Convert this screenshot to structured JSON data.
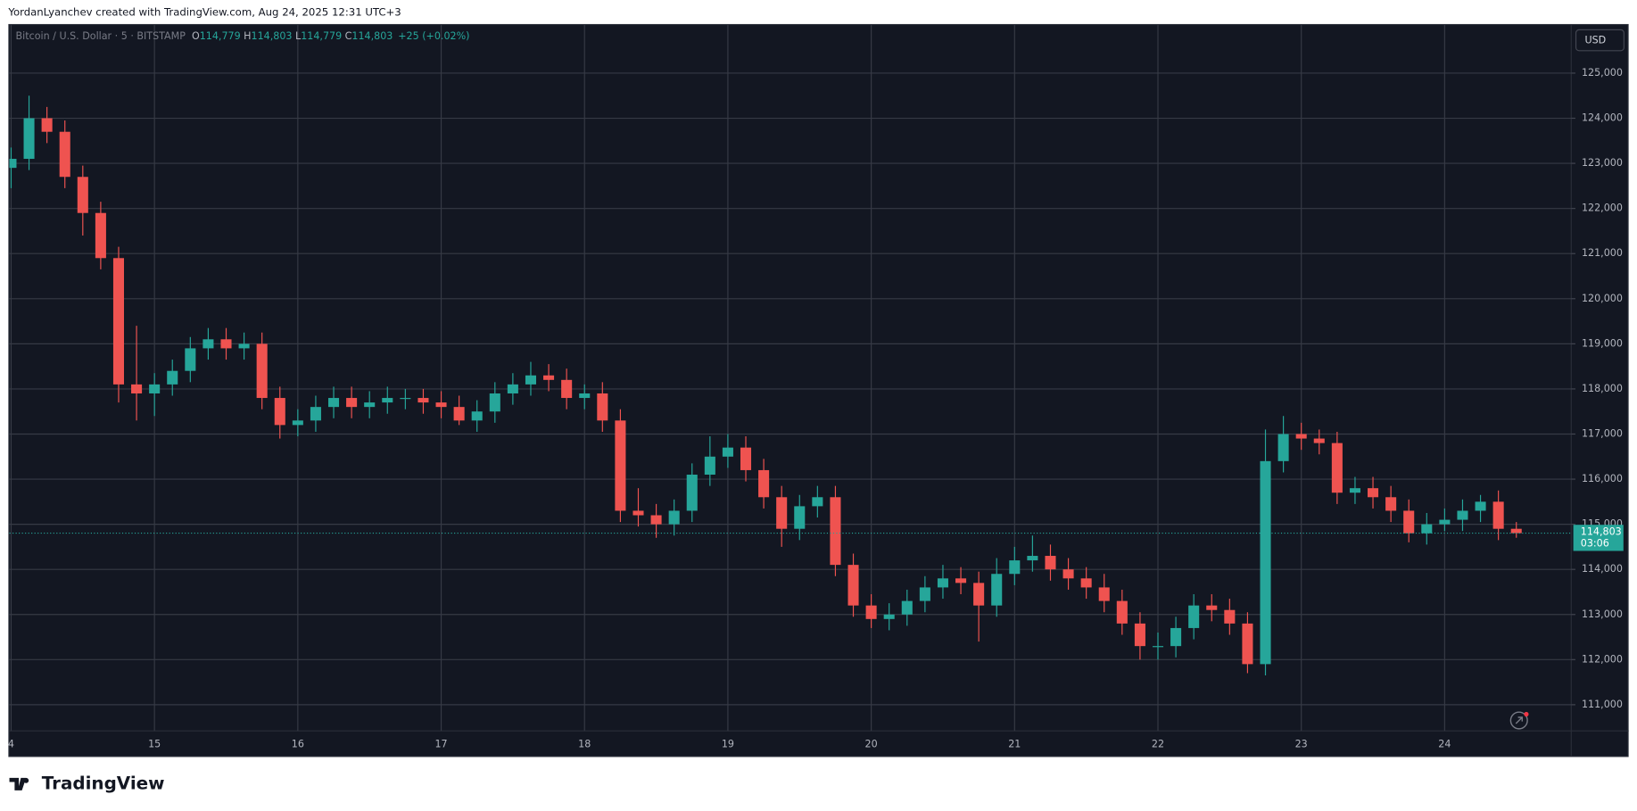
{
  "header": {
    "attribution": "YordanLyanchev created with TradingView.com, Aug 24, 2025 12:31 UTC+3"
  },
  "chart_data": {
    "type": "candlestick",
    "title": "Bitcoin / U.S. Dollar · 5 · BITSTAMP",
    "ohlc_legend": [
      {
        "key": "O",
        "value": "114,779"
      },
      {
        "key": "H",
        "value": "114,803"
      },
      {
        "key": "L",
        "value": "114,779"
      },
      {
        "key": "C",
        "value": "114,803"
      }
    ],
    "change": "+25 (+0.02%)",
    "currency": "USD",
    "up_color": "#26a69a",
    "down_color": "#ef5350",
    "grid": true,
    "x": [
      14,
      14.125,
      14.25,
      14.375,
      14.5,
      14.625,
      14.75,
      14.875,
      15,
      15.125,
      15.25,
      15.375,
      15.5,
      15.625,
      15.75,
      15.875,
      16,
      16.125,
      16.25,
      16.375,
      16.5,
      16.625,
      16.75,
      16.875,
      17,
      17.125,
      17.25,
      17.375,
      17.5,
      17.625,
      17.75,
      17.875,
      18,
      18.125,
      18.25,
      18.375,
      18.5,
      18.625,
      18.75,
      18.875,
      19,
      19.125,
      19.25,
      19.375,
      19.5,
      19.625,
      19.75,
      19.875,
      20,
      20.125,
      20.25,
      20.375,
      20.5,
      20.625,
      20.75,
      20.875,
      21,
      21.125,
      21.25,
      21.375,
      21.5,
      21.625,
      21.75,
      21.875,
      22,
      22.125,
      22.25,
      22.375,
      22.5,
      22.625,
      22.75,
      22.875,
      23,
      23.125,
      23.25,
      23.375,
      23.5,
      23.625,
      23.75,
      23.875,
      24,
      24.125,
      24.25,
      24.375,
      24.5
    ],
    "open": [
      122900,
      123100,
      124000,
      123700,
      122700,
      121900,
      120900,
      118100,
      117900,
      118100,
      118400,
      118900,
      119100,
      118900,
      119000,
      117800,
      117200,
      117300,
      117600,
      117800,
      117600,
      117700,
      117800,
      117800,
      117700,
      117600,
      117300,
      117500,
      117900,
      118100,
      118300,
      118200,
      117800,
      117900,
      117300,
      115300,
      115200,
      115000,
      115300,
      116100,
      116500,
      116700,
      116200,
      115600,
      114900,
      115400,
      115600,
      114100,
      113200,
      112900,
      113000,
      113300,
      113600,
      113800,
      113700,
      113200,
      113900,
      114200,
      114300,
      114000,
      113800,
      113600,
      113300,
      112800,
      112300,
      112300,
      112700,
      113200,
      113100,
      112800,
      111900,
      116400,
      117000,
      116900,
      116800,
      115700,
      115800,
      115600,
      115300,
      114800,
      115000,
      115100,
      115300,
      115500,
      114900
    ],
    "high": [
      123350,
      124500,
      124250,
      123950,
      122950,
      122150,
      121150,
      119400,
      118350,
      118650,
      119150,
      119350,
      119350,
      119250,
      119250,
      118050,
      117550,
      117850,
      118050,
      118050,
      117950,
      118050,
      118000,
      118000,
      117950,
      117850,
      117750,
      118150,
      118350,
      118600,
      118550,
      118450,
      118100,
      118150,
      117550,
      115800,
      115450,
      115550,
      116350,
      116950,
      117000,
      116950,
      116450,
      115850,
      115650,
      115850,
      115850,
      114350,
      113450,
      113250,
      113550,
      113850,
      114100,
      114050,
      113950,
      114250,
      114500,
      114750,
      114550,
      114250,
      114050,
      113900,
      113550,
      113050,
      112600,
      112950,
      113450,
      113450,
      113350,
      113050,
      117100,
      117400,
      117250,
      117100,
      117050,
      116050,
      116050,
      115850,
      115550,
      115250,
      115350,
      115550,
      115650,
      115750,
      115050
    ],
    "low": [
      122450,
      122850,
      123450,
      122450,
      121400,
      120650,
      117700,
      117300,
      117400,
      117850,
      118150,
      118650,
      118650,
      118650,
      117550,
      116900,
      116950,
      117050,
      117350,
      117350,
      117350,
      117450,
      117550,
      117450,
      117350,
      117200,
      117050,
      117250,
      117650,
      117850,
      117950,
      117550,
      117550,
      117050,
      115050,
      114950,
      114700,
      114750,
      115050,
      115850,
      116250,
      115950,
      115350,
      114500,
      114650,
      115150,
      113850,
      112950,
      112700,
      112650,
      112750,
      113050,
      113350,
      113450,
      112400,
      112950,
      113650,
      113950,
      113750,
      113550,
      113350,
      113050,
      112550,
      112000,
      112000,
      112050,
      112450,
      112850,
      112550,
      111700,
      111650,
      116150,
      116650,
      116550,
      115450,
      115450,
      115350,
      115050,
      114600,
      114550,
      114850,
      114850,
      115050,
      114650,
      114700
    ],
    "close": [
      123100,
      124000,
      123700,
      122700,
      121900,
      120900,
      118100,
      117900,
      118100,
      118400,
      118900,
      119100,
      118900,
      119000,
      117800,
      117200,
      117300,
      117600,
      117800,
      117600,
      117700,
      117800,
      117800,
      117700,
      117600,
      117300,
      117500,
      117900,
      118100,
      118300,
      118200,
      117800,
      117900,
      117300,
      115300,
      115200,
      115000,
      115300,
      116100,
      116500,
      116700,
      116200,
      115600,
      114900,
      115400,
      115600,
      114100,
      113200,
      112900,
      113000,
      113300,
      113600,
      113800,
      113700,
      113200,
      113900,
      114200,
      114300,
      114000,
      113800,
      113600,
      113300,
      112800,
      112300,
      112300,
      112700,
      113200,
      113100,
      112800,
      111900,
      116400,
      117000,
      116900,
      116800,
      115700,
      115800,
      115600,
      115300,
      114800,
      115000,
      115100,
      115300,
      115500,
      114900,
      114803
    ],
    "xlim": [
      13.988,
      24.883
    ],
    "xticks": [
      {
        "value": 14,
        "label": "4"
      },
      15,
      16,
      17,
      18,
      19,
      20,
      21,
      22,
      23,
      24
    ],
    "ylim": [
      110420,
      126065
    ],
    "yticks": [
      {
        "value": 125000,
        "label": "125,000"
      },
      {
        "value": 124000,
        "label": "124,000"
      },
      {
        "value": 123000,
        "label": "123,000"
      },
      {
        "value": 122000,
        "label": "122,000"
      },
      {
        "value": 121000,
        "label": "121,000"
      },
      {
        "value": 120000,
        "label": "120,000"
      },
      {
        "value": 119000,
        "label": "119,000"
      },
      {
        "value": 118000,
        "label": "118,000"
      },
      {
        "value": 117000,
        "label": "117,000"
      },
      {
        "value": 116000,
        "label": "116,000"
      },
      {
        "value": 115000,
        "label": "115,000"
      },
      {
        "value": 114000,
        "label": "114,000"
      },
      {
        "value": 113000,
        "label": "113,000"
      },
      {
        "value": 112000,
        "label": "112,000"
      },
      {
        "value": 111000,
        "label": "111,000"
      }
    ],
    "last_price": {
      "value": 114803,
      "label": "114,803",
      "countdown": "03:06"
    }
  },
  "footer": {
    "brand": "TradingView"
  }
}
